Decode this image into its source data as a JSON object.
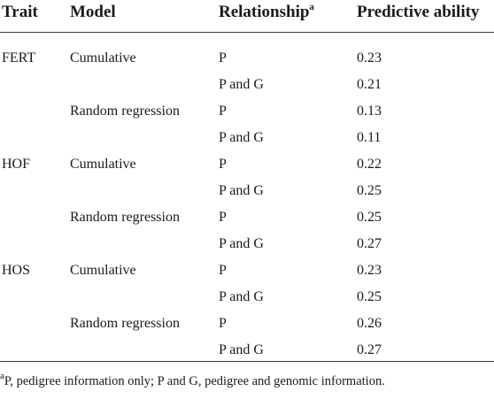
{
  "headers": {
    "trait": "Trait",
    "model": "Model",
    "relationship": "Relationship",
    "relationship_sup": "a",
    "predictive": "Predictive ability"
  },
  "rows": [
    {
      "trait": "FERT",
      "model": "Cumulative",
      "relationship": "P",
      "value": "0.23"
    },
    {
      "trait": "",
      "model": "",
      "relationship": "P and G",
      "value": "0.21"
    },
    {
      "trait": "",
      "model": "Random regression",
      "relationship": "P",
      "value": "0.13"
    },
    {
      "trait": "",
      "model": "",
      "relationship": "P and G",
      "value": "0.11"
    },
    {
      "trait": "HOF",
      "model": "Cumulative",
      "relationship": "P",
      "value": "0.22"
    },
    {
      "trait": "",
      "model": "",
      "relationship": "P and G",
      "value": "0.25"
    },
    {
      "trait": "",
      "model": "Random regression",
      "relationship": "P",
      "value": "0.25"
    },
    {
      "trait": "",
      "model": "",
      "relationship": "P and G",
      "value": "0.27"
    },
    {
      "trait": "HOS",
      "model": "Cumulative",
      "relationship": "P",
      "value": "0.23"
    },
    {
      "trait": "",
      "model": "",
      "relationship": "P and G",
      "value": "0.25"
    },
    {
      "trait": "",
      "model": "Random regression",
      "relationship": "P",
      "value": "0.26"
    },
    {
      "trait": "",
      "model": "",
      "relationship": "P and G",
      "value": "0.27"
    }
  ],
  "footnote": {
    "sup": "a",
    "text": "P, pedigree information only; P and G, pedigree and genomic information."
  }
}
